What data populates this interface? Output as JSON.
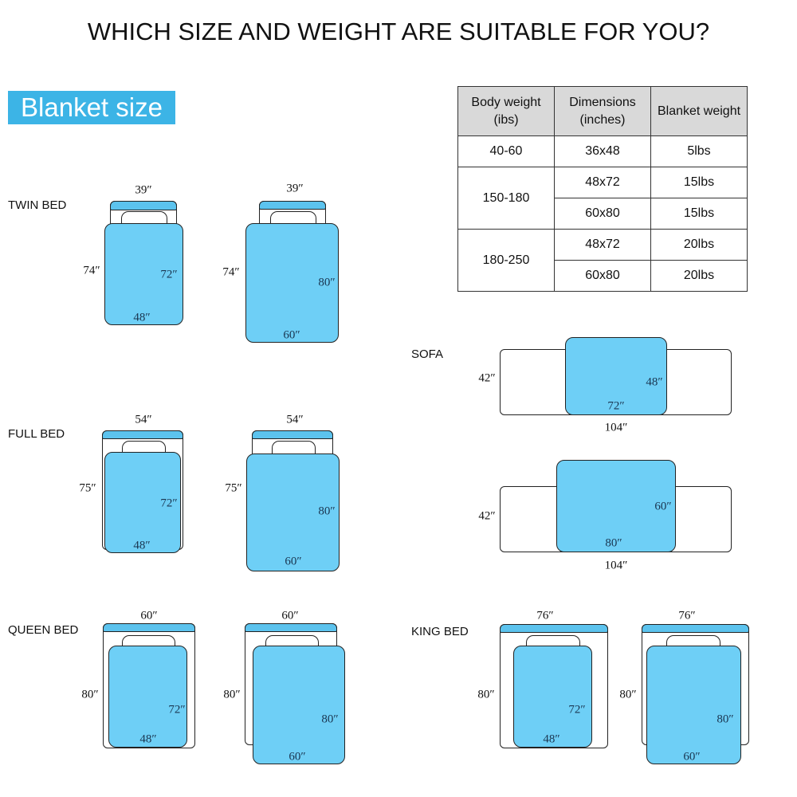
{
  "title": "WHICH SIZE AND WEIGHT ARE SUITABLE FOR YOU?",
  "size_tag": "Blanket size",
  "colors": {
    "blanket": "#6ecff6",
    "accent": "#3cb4e6",
    "header_bg": "#d9d9d9"
  },
  "categories": {
    "twin": "TWIN BED",
    "full": "FULL BED",
    "queen": "QUEEN BED",
    "sofa": "SOFA",
    "king": "KING BED"
  },
  "table": {
    "headers": [
      "Body weight (ibs)",
      "Dimensions (inches)",
      "Blanket weight"
    ],
    "groups": [
      {
        "body": "40-60",
        "rows": [
          {
            "dim": "36x48",
            "weight": "5lbs"
          }
        ]
      },
      {
        "body": "150-180",
        "rows": [
          {
            "dim": "48x72",
            "weight": "15lbs"
          },
          {
            "dim": "60x80",
            "weight": "15lbs"
          }
        ]
      },
      {
        "body": "180-250",
        "rows": [
          {
            "dim": "48x72",
            "weight": "20lbs"
          },
          {
            "dim": "60x80",
            "weight": "20lbs"
          }
        ]
      }
    ]
  },
  "diagrams": [
    {
      "name": "twin-48x72",
      "bed_width": "39″",
      "bed_length": "74″",
      "blanket_length": "72″",
      "blanket_width": "48″"
    },
    {
      "name": "twin-60x80",
      "bed_width": "39″",
      "bed_length": "74″",
      "blanket_length": "80″",
      "blanket_width": "60″"
    },
    {
      "name": "full-48x72",
      "bed_width": "54″",
      "bed_length": "75″",
      "blanket_length": "72″",
      "blanket_width": "48″"
    },
    {
      "name": "full-60x80",
      "bed_width": "54″",
      "bed_length": "75″",
      "blanket_length": "80″",
      "blanket_width": "60″"
    },
    {
      "name": "queen-48x72",
      "bed_width": "60″",
      "bed_length": "80″",
      "blanket_length": "72″",
      "blanket_width": "48″"
    },
    {
      "name": "queen-60x80",
      "bed_width": "60″",
      "bed_length": "80″",
      "blanket_length": "80″",
      "blanket_width": "60″"
    },
    {
      "name": "king-48x72",
      "bed_width": "76″",
      "bed_length": "80″",
      "blanket_length": "72″",
      "blanket_width": "48″"
    },
    {
      "name": "king-60x80",
      "bed_width": "76″",
      "bed_length": "80″",
      "blanket_length": "80″",
      "blanket_width": "60″"
    },
    {
      "name": "sofa-48x72",
      "bed_width": "104″",
      "bed_length": "42″",
      "blanket_length": "48″",
      "blanket_width": "72″"
    },
    {
      "name": "sofa-60x80",
      "bed_width": "104″",
      "bed_length": "42″",
      "blanket_length": "60″",
      "blanket_width": "80″"
    }
  ]
}
